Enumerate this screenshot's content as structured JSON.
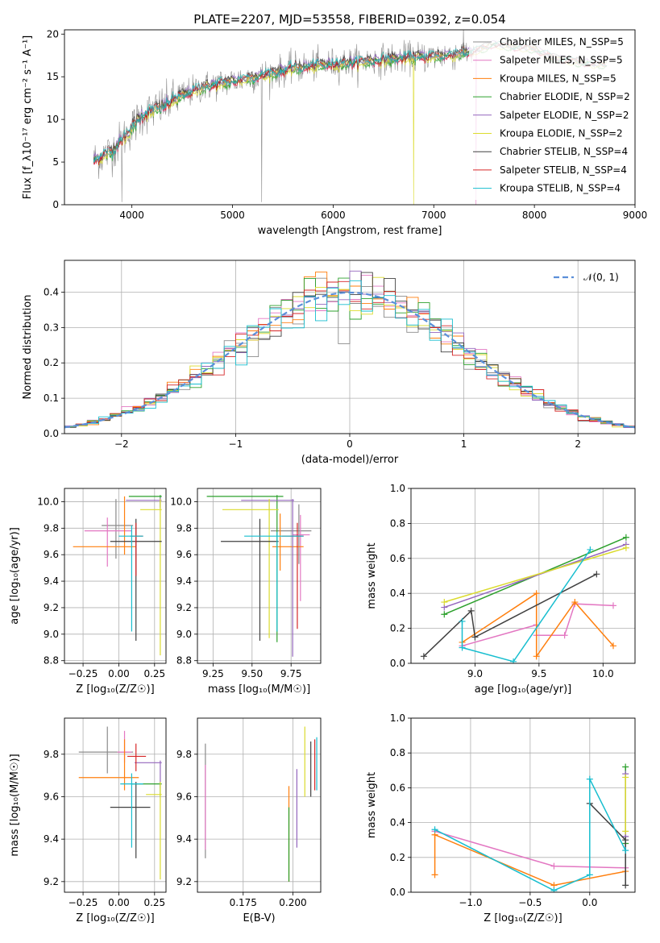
{
  "colors": {
    "c0": "#8b8b8b",
    "c1": "#e377c2",
    "c2": "#ff7f0e",
    "c3": "#2ca02c",
    "c4": "#9467bd",
    "c5": "#dbdb2d",
    "c6": "#404040",
    "c7": "#d62728",
    "c8": "#17becf",
    "gauss": "#5b8fd9"
  },
  "chart_data": [
    {
      "id": "spectrum",
      "type": "line",
      "title": "PLATE=2207, MJD=53558, FIBERID=0392, z=0.054",
      "xlabel": "wavelength [Angstrom, rest frame]",
      "ylabel": "Flux [f_λ10⁻¹⁷ erg cm⁻² s⁻¹ A⁻¹]",
      "xlim": [
        3330,
        9000
      ],
      "ylim": [
        0,
        20.5
      ],
      "xticks": [
        "4000",
        "5000",
        "6000",
        "7000",
        "8000",
        "9000"
      ],
      "yticks": [
        "0",
        "5",
        "10",
        "15",
        "20"
      ],
      "legend_position": "upper right",
      "legend": [
        "Chabrier MILES, N_SSP=5",
        "Salpeter MILES, N_SSP=5",
        "Kroupa MILES, N_SSP=5",
        "Chabrier ELODIE, N_SSP=2",
        "Salpeter ELODIE, N_SSP=2",
        "Kroupa ELODIE, N_SSP=2",
        "Chabrier STELIB, N_SSP=4",
        "Salpeter STELIB, N_SSP=4",
        "Kroupa STELIB, N_SSP=4"
      ],
      "continuum": {
        "x": [
          3620,
          3800,
          3950,
          4100,
          4300,
          4500,
          4700,
          5000,
          5300,
          5600,
          5900,
          6200,
          6500,
          6800,
          7100,
          7400,
          7600,
          7800,
          8000,
          8200,
          8400,
          8600,
          8700
        ],
        "y": [
          5.2,
          6.3,
          8.3,
          10.5,
          11.5,
          12.8,
          13.8,
          14.5,
          15.2,
          16.0,
          16.4,
          16.7,
          17.0,
          17.3,
          17.5,
          18.0,
          18.8,
          18.5,
          18.3,
          17.2,
          16.8,
          16.5,
          16.5
        ]
      }
    },
    {
      "id": "residuals",
      "type": "histogram",
      "xlabel": "(data-model)/error",
      "ylabel": "Normed distribution",
      "xlim": [
        -2.5,
        2.5
      ],
      "ylim": [
        0,
        0.49
      ],
      "xticks": [
        "−2",
        "−1",
        "0",
        "1",
        "2"
      ],
      "yticks": [
        "0.0",
        "0.1",
        "0.2",
        "0.3",
        "0.4"
      ],
      "legend": [
        "𝒩(0, 1)"
      ],
      "legend_position": "upper right",
      "bin_width": 0.1,
      "range": [
        -2.5,
        2.5
      ]
    },
    {
      "id": "age_vs_Z",
      "type": "errorbar",
      "xlabel": "Z [log₁₀(Z/Z☉)]",
      "ylabel": "age  [log₁₀(age/yr)]",
      "xlim": [
        -0.38,
        0.33
      ],
      "ylim": [
        8.78,
        10.1
      ],
      "xticks": [
        "−0.25",
        "0.00",
        "0.25"
      ],
      "yticks": [
        "8.8",
        "9.0",
        "9.2",
        "9.4",
        "9.6",
        "9.8",
        "10.0"
      ],
      "points": [
        {
          "x": -0.02,
          "y": 9.82,
          "xerr": [
            0.1,
            0.12
          ],
          "yerr": [
            0.25,
            0.2
          ]
        },
        {
          "x": -0.08,
          "y": 9.78,
          "xerr": [
            0.16,
            0.17
          ],
          "yerr": [
            0.27,
            0.1
          ]
        },
        {
          "x": 0.04,
          "y": 9.66,
          "xerr": [
            0.36,
            0.08
          ],
          "yerr": [
            0.06,
            0.38
          ]
        },
        {
          "x": 0.29,
          "y": 10.04,
          "xerr": [
            0.22,
            0.01
          ],
          "yerr": [
            0.09,
            0.01
          ]
        },
        {
          "x": 0.29,
          "y": 10.01,
          "xerr": [
            0.24,
            0.01
          ],
          "yerr": [
            0.05,
            0.02
          ]
        },
        {
          "x": 0.29,
          "y": 9.94,
          "xerr": [
            0.14,
            0.01
          ],
          "yerr": [
            1.1,
            0.08
          ]
        },
        {
          "x": 0.12,
          "y": 9.7,
          "xerr": [
            0.18,
            0.18
          ],
          "yerr": [
            0.75,
            0.17
          ]
        },
        {
          "x": 0.12,
          "y": 9.74,
          "xerr": [
            0.04,
            0.05
          ],
          "yerr": [
            0.3,
            0.1
          ]
        },
        {
          "x": 0.09,
          "y": 9.74,
          "xerr": [
            0.09,
            0.08
          ],
          "yerr": [
            0.72,
            0.08
          ]
        }
      ]
    },
    {
      "id": "age_vs_mass",
      "type": "errorbar",
      "xlabel": "mass [log₁₀(M/M☉)]",
      "xlim": [
        9.15,
        9.94
      ],
      "ylim": [
        8.78,
        10.1
      ],
      "xticks": [
        "9.25",
        "9.50",
        "9.75"
      ],
      "yticks": [
        "8.8",
        "9.0",
        "9.2",
        "9.4",
        "9.6",
        "9.8",
        "10.0"
      ],
      "points": [
        {
          "x": 9.8,
          "y": 9.78,
          "xerr": [
            0.18,
            0.08
          ],
          "yerr": [
            0.25,
            0.2
          ]
        },
        {
          "x": 9.81,
          "y": 9.75,
          "xerr": [
            0.05,
            0.06
          ],
          "yerr": [
            0.5,
            0.15
          ]
        },
        {
          "x": 9.68,
          "y": 9.66,
          "xerr": [
            0.05,
            0.15
          ],
          "yerr": [
            0.18,
            0.25
          ]
        },
        {
          "x": 9.66,
          "y": 10.04,
          "xerr": [
            0.45,
            0.04
          ],
          "yerr": [
            1.1,
            0.01
          ]
        },
        {
          "x": 9.76,
          "y": 10.01,
          "xerr": [
            0.33,
            0.01
          ],
          "yerr": [
            1.18,
            0.01
          ]
        },
        {
          "x": 9.61,
          "y": 9.94,
          "xerr": [
            0.3,
            0.06
          ],
          "yerr": [
            0.97,
            0.08
          ]
        },
        {
          "x": 9.55,
          "y": 9.7,
          "xerr": [
            0.25,
            0.12
          ],
          "yerr": [
            0.75,
            0.17
          ]
        },
        {
          "x": 9.79,
          "y": 9.74,
          "xerr": [
            0.1,
            0.04
          ],
          "yerr": [
            0.7,
            0.1
          ]
        },
        {
          "x": 9.66,
          "y": 9.74,
          "xerr": [
            0.21,
            0.17
          ],
          "yerr": [
            0.72,
            0.03
          ]
        }
      ]
    },
    {
      "id": "mass_weight_vs_age",
      "type": "line",
      "xlabel": "age  [log₁₀(age/yr)]",
      "ylabel": "mass weight",
      "xlim": [
        8.5,
        10.25
      ],
      "ylim": [
        0,
        1
      ],
      "xticks": [
        "9.0",
        "9.5",
        "10.0"
      ],
      "yticks": [
        "0.0",
        "0.2",
        "0.4",
        "0.6",
        "0.8",
        "1.0"
      ],
      "series": [
        {
          "color": "c1",
          "x": [
            8.9,
            9.48,
            9.48,
            9.7,
            9.78,
            10.08
          ],
          "y": [
            0.1,
            0.22,
            0.16,
            0.16,
            0.34,
            0.33
          ]
        },
        {
          "color": "c2",
          "x": [
            8.9,
            9.48,
            9.48,
            9.78,
            10.08
          ],
          "y": [
            0.12,
            0.4,
            0.04,
            0.35,
            0.1
          ]
        },
        {
          "color": "c3",
          "x": [
            8.76,
            10.18
          ],
          "y": [
            0.28,
            0.72
          ]
        },
        {
          "color": "c4",
          "x": [
            8.76,
            10.18
          ],
          "y": [
            0.32,
            0.68
          ]
        },
        {
          "color": "c5",
          "x": [
            8.76,
            10.18
          ],
          "y": [
            0.35,
            0.66
          ]
        },
        {
          "color": "c6",
          "x": [
            8.6,
            8.97,
            9.0,
            9.95
          ],
          "y": [
            0.04,
            0.3,
            0.15,
            0.51
          ]
        },
        {
          "color": "c8",
          "x": [
            8.9,
            8.9,
            9.3,
            9.9
          ],
          "y": [
            0.24,
            0.09,
            0.01,
            0.65
          ]
        }
      ]
    },
    {
      "id": "mass_vs_Z",
      "type": "errorbar",
      "xlabel": "Z [log₁₀(Z/Z☉)]",
      "ylabel": "mass [log₁₀(M/M☉)]",
      "xlim": [
        -0.38,
        0.33
      ],
      "ylim": [
        9.15,
        9.97
      ],
      "xticks": [
        "−0.25",
        "0.00",
        "0.25"
      ],
      "yticks": [
        "9.2",
        "9.4",
        "9.6",
        "9.8"
      ],
      "points": [
        {
          "x": -0.08,
          "y": 9.81,
          "xerr": [
            0.2,
            0.18
          ],
          "yerr": [
            0.1,
            0.12
          ]
        },
        {
          "x": 0.04,
          "y": 9.81,
          "xerr": [
            0.05,
            0.05
          ],
          "yerr": [
            0.05,
            0.1
          ]
        },
        {
          "x": 0.04,
          "y": 9.69,
          "xerr": [
            0.32,
            0.1
          ],
          "yerr": [
            0.06,
            0.18
          ]
        },
        {
          "x": 0.29,
          "y": 9.66,
          "xerr": [
            0.2,
            0.01
          ],
          "yerr": [
            0.06,
            0.01
          ]
        },
        {
          "x": 0.29,
          "y": 9.76,
          "xerr": [
            0.18,
            0.01
          ],
          "yerr": [
            0.12,
            0.01
          ]
        },
        {
          "x": 0.29,
          "y": 9.61,
          "xerr": [
            0.1,
            0.01
          ],
          "yerr": [
            0.4,
            0.06
          ]
        },
        {
          "x": 0.12,
          "y": 9.55,
          "xerr": [
            0.18,
            0.1
          ],
          "yerr": [
            0.24,
            0.12
          ]
        },
        {
          "x": 0.12,
          "y": 9.79,
          "xerr": [
            0.06,
            0.07
          ],
          "yerr": [
            0.07,
            0.06
          ]
        },
        {
          "x": 0.09,
          "y": 9.66,
          "xerr": [
            0.08,
            0.08
          ],
          "yerr": [
            0.3,
            0.05
          ]
        }
      ]
    },
    {
      "id": "mass_vs_ebv",
      "type": "errorbar",
      "xlabel": "E(B-V)",
      "xlim": [
        0.152,
        0.214
      ],
      "ylim": [
        9.15,
        9.97
      ],
      "xticks": [
        "0.175",
        "0.200"
      ],
      "yticks": [
        "9.2",
        "9.4",
        "9.6",
        "9.8"
      ],
      "points": [
        {
          "x": 0.156,
          "y": 9.65,
          "xerr": [
            0,
            0
          ],
          "yerr": [
            0.34,
            0.2
          ]
        },
        {
          "x": 0.156,
          "y": 9.6,
          "xerr": [
            0,
            0
          ],
          "yerr": [
            0.25,
            0.15
          ]
        },
        {
          "x": 0.198,
          "y": 9.45,
          "xerr": [
            0,
            0
          ],
          "yerr": [
            0.25,
            0.2
          ]
        },
        {
          "x": 0.198,
          "y": 9.4,
          "xerr": [
            0,
            0
          ],
          "yerr": [
            0.2,
            0.15
          ]
        },
        {
          "x": 0.202,
          "y": 9.58,
          "xerr": [
            0,
            0
          ],
          "yerr": [
            0.22,
            0.15
          ]
        },
        {
          "x": 0.206,
          "y": 9.75,
          "xerr": [
            0,
            0
          ],
          "yerr": [
            0.15,
            0.18
          ]
        },
        {
          "x": 0.209,
          "y": 9.74,
          "xerr": [
            0,
            0
          ],
          "yerr": [
            0.14,
            0.12
          ]
        },
        {
          "x": 0.211,
          "y": 9.73,
          "xerr": [
            0,
            0
          ],
          "yerr": [
            0.1,
            0.14
          ]
        },
        {
          "x": 0.212,
          "y": 9.75,
          "xerr": [
            0,
            0
          ],
          "yerr": [
            0.12,
            0.13
          ]
        }
      ]
    },
    {
      "id": "mass_weight_vs_Z",
      "type": "line",
      "xlabel": "Z [log₁₀(Z/Z☉)]",
      "ylabel": "mass weight",
      "xlim": [
        -1.5,
        0.38
      ],
      "ylim": [
        0,
        1
      ],
      "xticks": [
        "−1.0",
        "−0.5",
        "0.0"
      ],
      "yticks": [
        "0.0",
        "0.2",
        "0.4",
        "0.6",
        "0.8",
        "1.0"
      ],
      "series": [
        {
          "color": "c1",
          "x": [
            -1.3,
            -0.3,
            0.3
          ],
          "y": [
            0.35,
            0.15,
            0.14
          ]
        },
        {
          "color": "c2",
          "x": [
            -1.3,
            -1.3,
            -0.3,
            0.3
          ],
          "y": [
            0.1,
            0.33,
            0.04,
            0.12
          ]
        },
        {
          "color": "c3",
          "x": [
            0.3,
            0.3
          ],
          "y": [
            0.28,
            0.72
          ]
        },
        {
          "color": "c4",
          "x": [
            0.3,
            0.3
          ],
          "y": [
            0.32,
            0.68
          ]
        },
        {
          "color": "c5",
          "x": [
            0.3,
            0.3
          ],
          "y": [
            0.35,
            0.66
          ]
        },
        {
          "color": "c6",
          "x": [
            0.0,
            0.3,
            0.3
          ],
          "y": [
            0.51,
            0.3,
            0.04
          ]
        },
        {
          "color": "c8",
          "x": [
            -1.3,
            -0.3,
            0.0,
            0.0,
            0.3
          ],
          "y": [
            0.36,
            0.01,
            0.1,
            0.65,
            0.24
          ]
        }
      ]
    }
  ]
}
